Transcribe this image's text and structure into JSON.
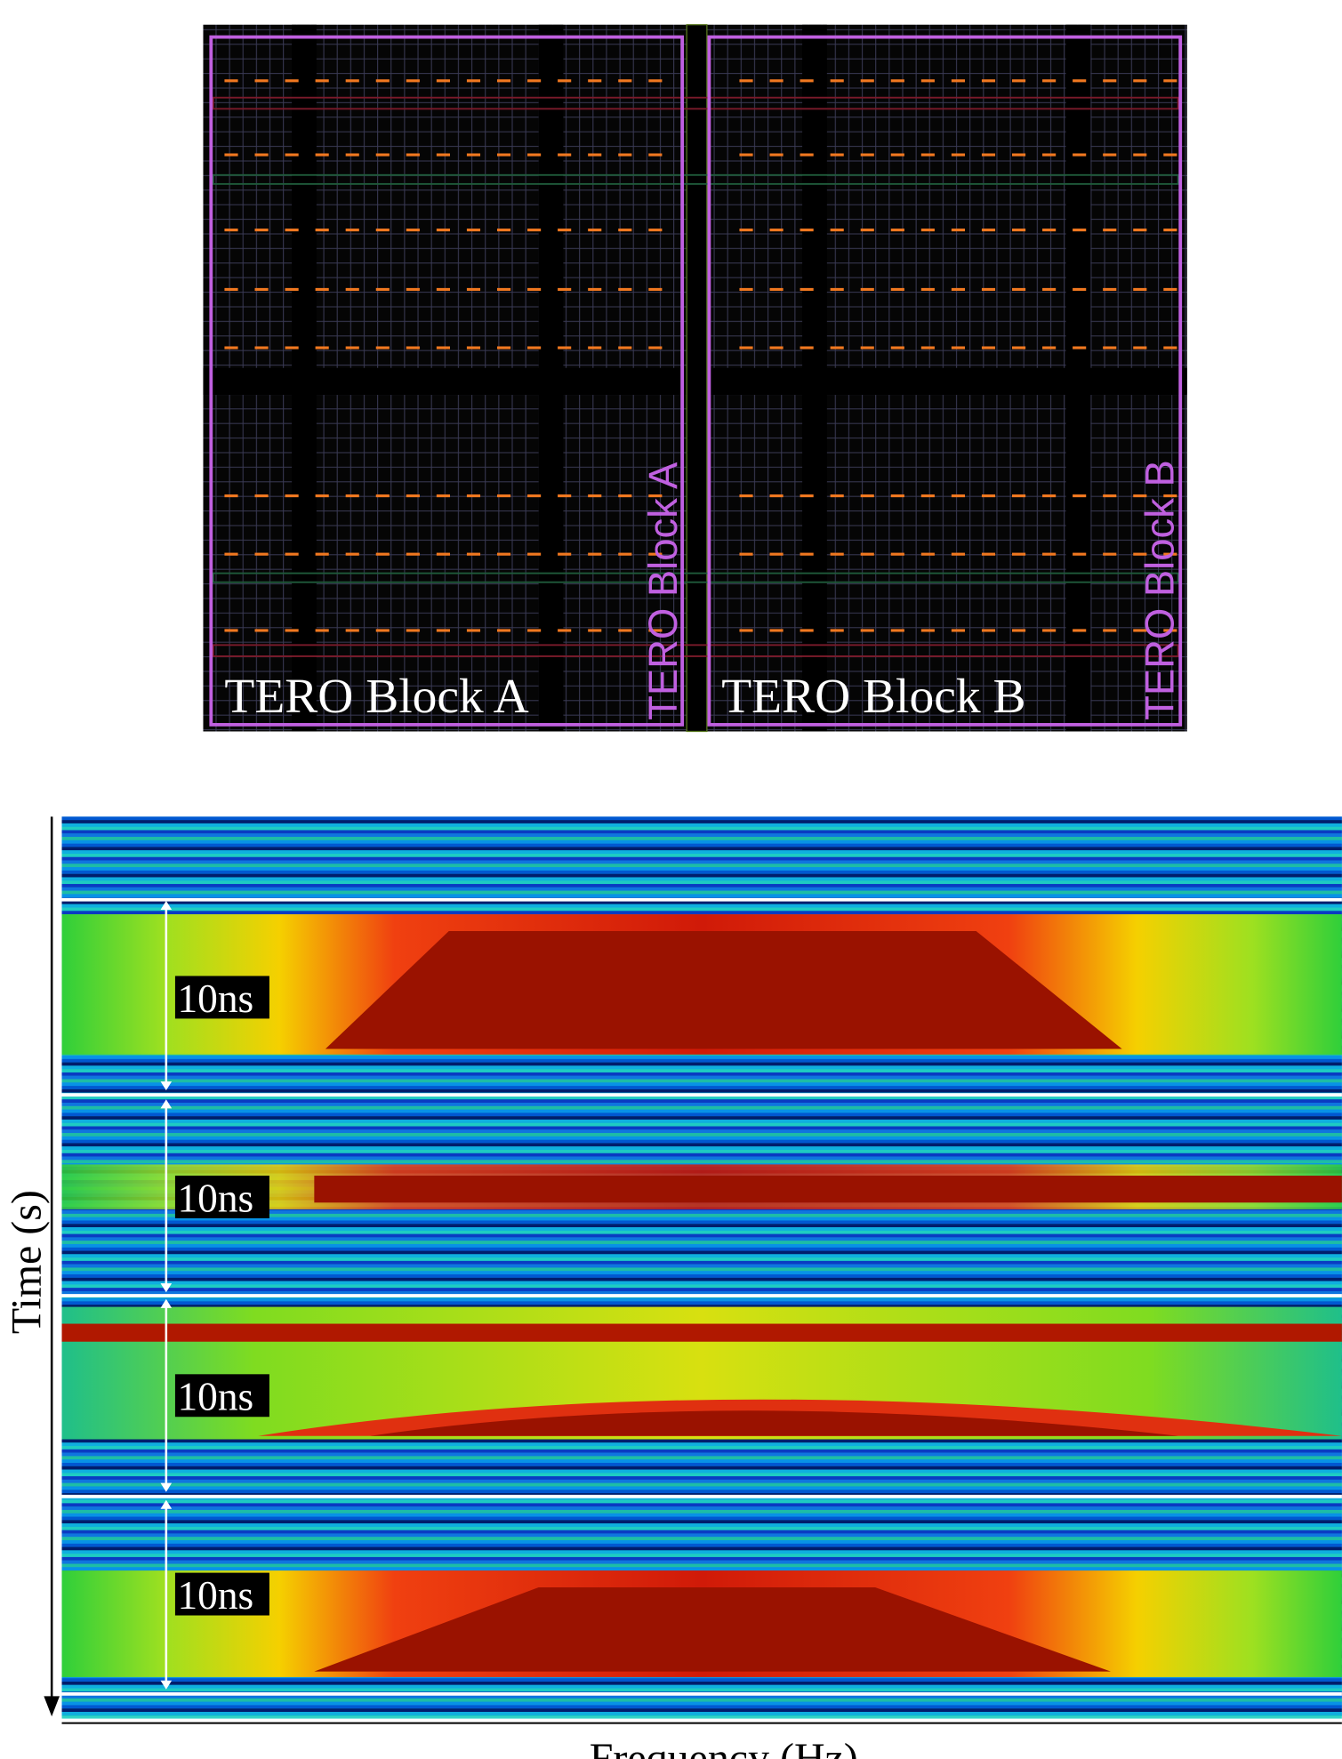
{
  "layout_panel": {
    "labels": [
      "TERO Block A",
      "TERO Block B"
    ],
    "vertical_labels": [
      "TERO Block A",
      "TERO Block B"
    ]
  },
  "spectrogram": {
    "interval_labels": [
      "10ns",
      "10ns",
      "10ns",
      "10ns"
    ],
    "y_axis_label": "Time (s)",
    "x_axis_label": "Frequency (Hz)"
  }
}
